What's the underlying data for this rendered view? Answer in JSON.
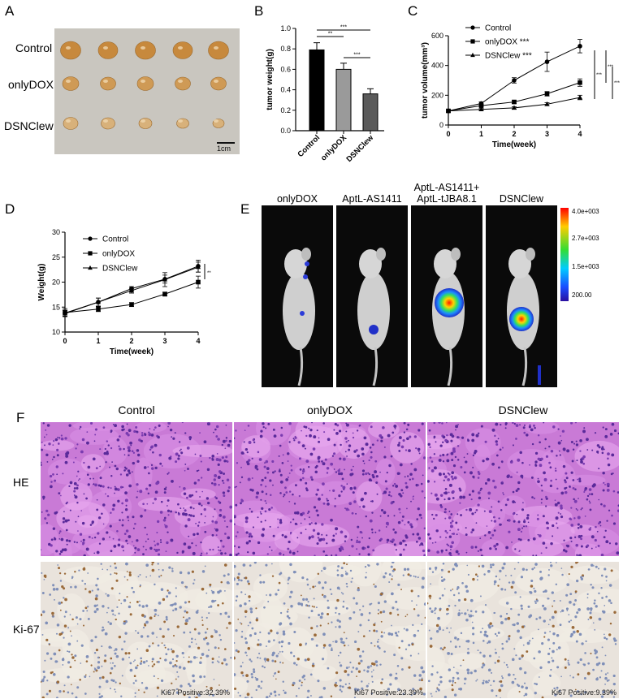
{
  "panels": {
    "A": {
      "letter": "A",
      "row_labels": [
        "Control",
        "onlyDOX",
        "DSNClew"
      ],
      "scale_bar_label": "1cm"
    },
    "B": {
      "letter": "B"
    },
    "C": {
      "letter": "C"
    },
    "D": {
      "letter": "D"
    },
    "E": {
      "letter": "E",
      "columns": [
        "onlyDOX",
        "AptL-AS1411",
        "AptL-AS1411+\nAptL-tJBA8.1",
        "DSNClew"
      ],
      "colorbar_ticks": [
        "4.0e+003",
        "2.7e+003",
        "1.5e+003",
        "200.00"
      ]
    },
    "F": {
      "letter": "F",
      "columns": [
        "Control",
        "onlyDOX",
        "DSNClew"
      ],
      "rows": [
        "HE",
        "Ki-67"
      ],
      "ki67_labels": [
        "Ki67 Positive:32.39%",
        "Ki67 Positive:23.39%",
        "Ki67 Positive:9.39%"
      ]
    }
  },
  "chart_data": [
    {
      "id": "B",
      "type": "bar",
      "categories": [
        "Control",
        "onlyDOX",
        "DSNClew"
      ],
      "values": [
        0.79,
        0.6,
        0.36
      ],
      "errors": [
        0.07,
        0.06,
        0.05
      ],
      "colors": [
        "#000000",
        "#9a9a9a",
        "#5a5a5a"
      ],
      "ylabel": "tumor weight(g)",
      "ylim": [
        0,
        1.0
      ],
      "yticks": [
        "0.0",
        "0.2",
        "0.4",
        "0.6",
        "0.8",
        "1.0"
      ],
      "significance": [
        {
          "from": 0,
          "to": 2,
          "label": "***"
        },
        {
          "from": 0,
          "to": 1,
          "label": "**"
        },
        {
          "from": 1,
          "to": 2,
          "label": "***"
        }
      ]
    },
    {
      "id": "C",
      "type": "line",
      "x": [
        0,
        1,
        2,
        3,
        4
      ],
      "series": [
        {
          "name": "Control",
          "marker": "circle",
          "values": [
            95,
            145,
            300,
            425,
            530
          ],
          "errors": [
            8,
            10,
            18,
            65,
            45
          ]
        },
        {
          "name": "onlyDOX ***",
          "marker": "square",
          "values": [
            95,
            130,
            155,
            210,
            285
          ],
          "errors": [
            8,
            8,
            10,
            15,
            25
          ]
        },
        {
          "name": "DSNClew ***",
          "marker": "triangle",
          "values": [
            95,
            105,
            115,
            140,
            185
          ],
          "errors": [
            8,
            6,
            8,
            10,
            15
          ]
        }
      ],
      "xlabel": "Time(week)",
      "ylabel": "tumor volume(mm³)",
      "xlim": [
        0,
        4
      ],
      "ylim": [
        0,
        600
      ],
      "xticks": [
        "0",
        "1",
        "2",
        "3",
        "4"
      ],
      "yticks": [
        "0",
        "200",
        "400",
        "600"
      ],
      "significance": [
        "***",
        "***",
        "***"
      ]
    },
    {
      "id": "D",
      "type": "line",
      "x": [
        0,
        1,
        2,
        3,
        4
      ],
      "series": [
        {
          "name": "Control",
          "marker": "circle",
          "values": [
            13.8,
            16.0,
            18.7,
            20.6,
            23.2
          ],
          "errors": [
            0.6,
            0.8,
            0.4,
            0.8,
            1.2
          ]
        },
        {
          "name": "onlyDOX",
          "marker": "square",
          "values": [
            13.9,
            14.6,
            15.5,
            17.6,
            20.0
          ],
          "errors": [
            0.8,
            0.5,
            0.4,
            0.4,
            1.2
          ]
        },
        {
          "name": "DSNClew",
          "marker": "triangle",
          "values": [
            13.7,
            16.0,
            18.3,
            20.5,
            23.0
          ],
          "errors": [
            0.6,
            0.8,
            0.5,
            1.4,
            1.0
          ]
        }
      ],
      "xlabel": "Time(week)",
      "ylabel": "Weight(g)",
      "xlim": [
        0,
        4
      ],
      "ylim": [
        10,
        30
      ],
      "xticks": [
        "0",
        "1",
        "2",
        "3",
        "4"
      ],
      "yticks": [
        "10",
        "15",
        "20",
        "25",
        "30"
      ],
      "significance": [
        "**"
      ]
    }
  ]
}
